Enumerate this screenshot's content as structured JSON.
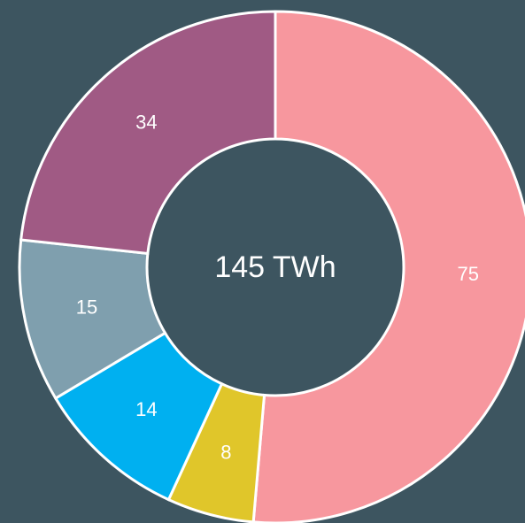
{
  "chart_data": {
    "type": "donut",
    "values": [
      75,
      8,
      14,
      15,
      34
    ],
    "colors": [
      "#f7979e",
      "#e0c62a",
      "#00b0f0",
      "#7f9fae",
      "#a05a84"
    ],
    "center_label": "145 TWh"
  }
}
